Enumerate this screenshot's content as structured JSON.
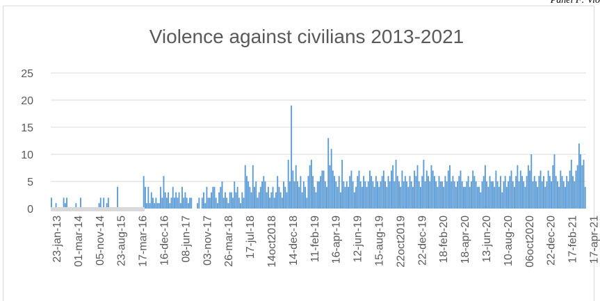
{
  "corner_note": "Panel F: Vio",
  "chart_data": {
    "type": "bar",
    "title": "Violence against civilians 2013-2021",
    "xlabel": "",
    "ylabel": "",
    "ylim": [
      0,
      25
    ],
    "y_ticks": [
      "0",
      "5",
      "10",
      "15",
      "20",
      "25"
    ],
    "grid": true,
    "bar_color": "#5b9bd5",
    "x_tick_labels": [
      "23-jan-13",
      "01-mar-14",
      "05-nov-14",
      "23-aug-15",
      "17-mar-16",
      "16-dec-16",
      "08-jun-17",
      "03-nov-17",
      "26-mar-18",
      "17-jul-18",
      "14oct2018",
      "14-dec-18",
      "11-feb-19",
      "16-apr-19",
      "12-jun-19",
      "15-aug-19",
      "22oct2019",
      "22-dec-19",
      "18-feb-20",
      "18-apr-20",
      "13-jun-20",
      "10-aug-20",
      "06oct2020",
      "22-dec-20",
      "17-feb-21",
      "17-apr-21"
    ],
    "series": [
      {
        "values": [
          2,
          0,
          0,
          1,
          0,
          0,
          0,
          0,
          2,
          1,
          2,
          0,
          0,
          0,
          0,
          0,
          1,
          0,
          0,
          2,
          0,
          0,
          0,
          0,
          0,
          0,
          0,
          0,
          0,
          0,
          0,
          1,
          2,
          0,
          2,
          0,
          1,
          2,
          0,
          0,
          0,
          0,
          0,
          4,
          0,
          0,
          0,
          0,
          0,
          0,
          0,
          0,
          0,
          0,
          0,
          0,
          0,
          0,
          0,
          0,
          6,
          4,
          1,
          4,
          1,
          3,
          2,
          1,
          2,
          1,
          1,
          4,
          2,
          6,
          3,
          2,
          3,
          1,
          2,
          4,
          2,
          3,
          2,
          3,
          1,
          4,
          2,
          3,
          2,
          1,
          2,
          2,
          0,
          0,
          0,
          1,
          2,
          0,
          2,
          3,
          1,
          4,
          2,
          2,
          3,
          4,
          4,
          2,
          1,
          3,
          4,
          5,
          2,
          3,
          2,
          1,
          3,
          3,
          2,
          5,
          3,
          4,
          2,
          1,
          3,
          2,
          8,
          6,
          5,
          4,
          3,
          8,
          4,
          5,
          2,
          3,
          4,
          5,
          6,
          5,
          3,
          4,
          2,
          3,
          4,
          2,
          3,
          6,
          4,
          3,
          2,
          5,
          4,
          3,
          9,
          5,
          19,
          7,
          5,
          8,
          5,
          4,
          6,
          3,
          5,
          4,
          2,
          6,
          8,
          9,
          6,
          4,
          3,
          5,
          5,
          6,
          7,
          7,
          5,
          4,
          13,
          8,
          11,
          7,
          6,
          5,
          4,
          6,
          3,
          9,
          5,
          4,
          5,
          4,
          6,
          7,
          5,
          3,
          4,
          6,
          7,
          5,
          4,
          6,
          5,
          4,
          5,
          7,
          6,
          5,
          4,
          6,
          5,
          4,
          5,
          6,
          7,
          5,
          4,
          6,
          5,
          7,
          8,
          5,
          9,
          6,
          5,
          4,
          7,
          5,
          6,
          5,
          4,
          6,
          5,
          4,
          7,
          6,
          8,
          5,
          4,
          6,
          9,
          5,
          7,
          6,
          5,
          8,
          7,
          6,
          5,
          4,
          6,
          5,
          5,
          4,
          6,
          5,
          7,
          8,
          5,
          6,
          5,
          4,
          5,
          6,
          7,
          5,
          4,
          4,
          5,
          6,
          4,
          5,
          7,
          6,
          5,
          4,
          4,
          3,
          5,
          6,
          8,
          5,
          4,
          6,
          5,
          5,
          4,
          7,
          5,
          4,
          6,
          3,
          5,
          6,
          4,
          5,
          6,
          7,
          5,
          4,
          6,
          8,
          5,
          7,
          6,
          5,
          4,
          6,
          8,
          7,
          10,
          5,
          6,
          5,
          4,
          6,
          7,
          5,
          6,
          4,
          5,
          7,
          6,
          5,
          8,
          10,
          6,
          5,
          4,
          7,
          6,
          5,
          4,
          6,
          5,
          7,
          9,
          6,
          5,
          7,
          8,
          12,
          10,
          8,
          9,
          4
        ]
      }
    ]
  }
}
